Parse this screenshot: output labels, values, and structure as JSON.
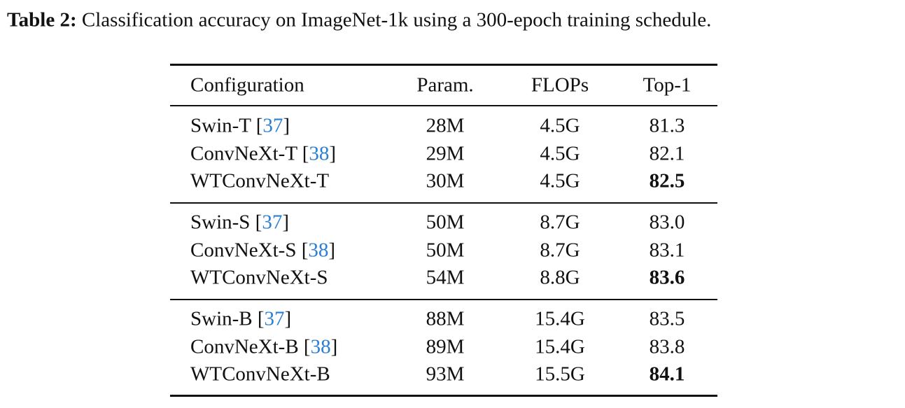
{
  "caption": {
    "label": "Table 2:",
    "text": "Classification accuracy on ImageNet-1k using a 300-epoch training schedule."
  },
  "table": {
    "header": [
      "Configuration",
      "Param.",
      "FLOPs",
      "Top-1"
    ],
    "groups": [
      {
        "rows": [
          {
            "config": [
              "Swin-T [",
              "37",
              "]"
            ],
            "cells": [
              "28M",
              "4.5G",
              "81.3"
            ],
            "best": false
          },
          {
            "config": [
              "ConvNeXt-T [",
              "38",
              "]"
            ],
            "cells": [
              "29M",
              "4.5G",
              "82.1"
            ],
            "best": false
          },
          {
            "config": [
              "WTConvNeXt-T"
            ],
            "cells": [
              "30M",
              "4.5G",
              "82.5"
            ],
            "best": true
          }
        ]
      },
      {
        "rows": [
          {
            "config": [
              "Swin-S [",
              "37",
              "]"
            ],
            "cells": [
              "50M",
              "8.7G",
              "83.0"
            ],
            "best": false
          },
          {
            "config": [
              "ConvNeXt-S [",
              "38",
              "]"
            ],
            "cells": [
              "50M",
              "8.7G",
              "83.1"
            ],
            "best": false
          },
          {
            "config": [
              "WTConvNeXt-S"
            ],
            "cells": [
              "54M",
              "8.8G",
              "83.6"
            ],
            "best": true
          }
        ]
      },
      {
        "rows": [
          {
            "config": [
              "Swin-B [",
              "37",
              "]"
            ],
            "cells": [
              "88M",
              "15.4G",
              "83.5"
            ],
            "best": false
          },
          {
            "config": [
              "ConvNeXt-B [",
              "38",
              "]"
            ],
            "cells": [
              "89M",
              "15.4G",
              "83.8"
            ],
            "best": false
          },
          {
            "config": [
              "WTConvNeXt-B"
            ],
            "cells": [
              "93M",
              "15.5G",
              "84.1"
            ],
            "best": true
          }
        ]
      }
    ]
  }
}
